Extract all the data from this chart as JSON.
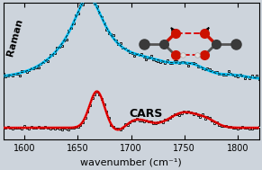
{
  "xmin": 1580,
  "xmax": 1820,
  "xticks": [
    1600,
    1650,
    1700,
    1750,
    1800
  ],
  "xlabel": "wavenumber (cm⁻¹)",
  "bg_color": "#cdd4dc",
  "inset_bg": "#dde3ea",
  "raman_label": "Raman",
  "cars_label": "CARS",
  "tick_fontsize": 7,
  "label_fontsize": 8
}
